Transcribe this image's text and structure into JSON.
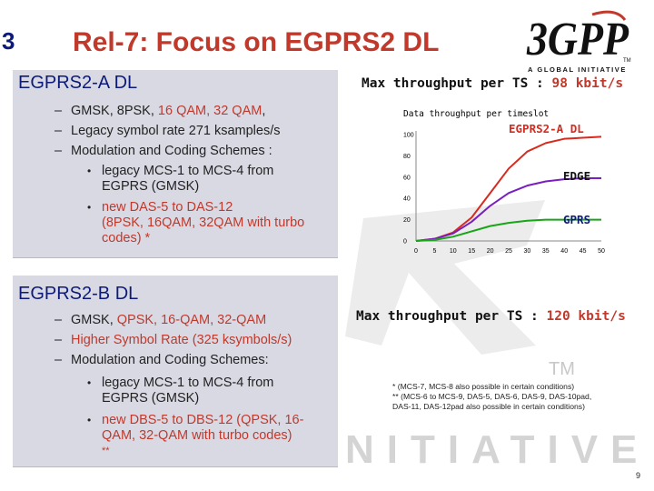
{
  "slide_number": "3",
  "title": "Rel-7: Focus on EGPRS2 DL",
  "logo": {
    "tagline": "A GLOBAL INITIATIVE",
    "mark": "3GPP"
  },
  "watermark": {
    "text": "NITIATIVE",
    "tm": "TM"
  },
  "colors": {
    "accent_red": "#c0392b",
    "heading_navy": "#0c1a7a",
    "panel": "#d9d9e4",
    "egprs2": "#d62b1f",
    "edge": "#7a1fbf",
    "gprs": "#18a518"
  },
  "section_a": {
    "heading": "EGPRS2-A DL",
    "items": {
      "l1": {
        "p1": "GMSK, 8PSK, ",
        "p2": "16 QAM, 32 QAM",
        "p3": ","
      },
      "l2": "Legacy symbol rate 271 ksamples/s",
      "l3": "Modulation and Coding Schemes :",
      "l3a": {
        "line1": "legacy MCS-1 to MCS-4 from",
        "line2": "EGPRS (GMSK)"
      },
      "l3b": {
        "line1": "new DAS-5 to DAS-12",
        "line2": "(8PSK, 16QAM, 32QAM with turbo",
        "line3": "codes) *"
      }
    },
    "max_throughput": {
      "label": "Max throughput per TS : ",
      "value": "98 kbit/s"
    }
  },
  "section_b": {
    "heading": "EGPRS2-B DL",
    "items": {
      "l1": {
        "p1": "GMSK, ",
        "p2": "QPSK, 16-QAM, 32-QAM"
      },
      "l2": "Higher Symbol Rate (325 ksymbols/s)",
      "l3": "Modulation and Coding Schemes:",
      "l3a": {
        "line1": "legacy MCS-1 to MCS-4 from",
        "line2": "EGPRS (GMSK)"
      },
      "l3b": {
        "line1": "new DBS-5 to DBS-12 (QPSK, 16-",
        "line2": "QAM, 32-QAM with turbo codes)",
        "line3": "**"
      }
    },
    "max_throughput": {
      "label": "Max throughput per TS : ",
      "value": "120 kbit/s"
    }
  },
  "chart_data": {
    "type": "line",
    "title": "Data throughput per timeslot",
    "xlabel": "",
    "ylabel": "",
    "x_ticks": [
      "0",
      "5",
      "10",
      "15",
      "20",
      "25",
      "30",
      "35",
      "40",
      "45",
      "50"
    ],
    "y_ticks": [
      "0",
      "20",
      "40",
      "60",
      "80",
      "100"
    ],
    "xlim": [
      0,
      50
    ],
    "ylim": [
      0,
      100
    ],
    "grid": false,
    "series": [
      {
        "name": "EGPRS2-A DL",
        "color": "#d62b1f",
        "x": [
          0,
          5,
          10,
          15,
          20,
          25,
          30,
          35,
          40,
          45,
          50
        ],
        "y": [
          0,
          2,
          8,
          22,
          45,
          68,
          84,
          92,
          96,
          97,
          98
        ]
      },
      {
        "name": "EDGE",
        "color": "#7a1fbf",
        "x": [
          0,
          5,
          10,
          15,
          20,
          25,
          30,
          35,
          40,
          45,
          50
        ],
        "y": [
          0,
          2,
          7,
          18,
          33,
          45,
          52,
          56,
          58,
          59,
          59
        ]
      },
      {
        "name": "GPRS",
        "color": "#18a518",
        "x": [
          0,
          5,
          10,
          15,
          20,
          25,
          30,
          35,
          40,
          45,
          50
        ],
        "y": [
          0,
          1,
          4,
          9,
          14,
          17,
          19,
          20,
          20,
          20,
          20
        ]
      }
    ]
  },
  "footnote": {
    "line1": "* (MCS-7, MCS-8 also possible in certain conditions)",
    "line2": "** (MCS-6 to MCS-9, DAS-5, DAS-6, DAS-9, DAS-10pad,",
    "line3": "DAS-11, DAS-12pad also possible in certain conditions)"
  },
  "page_number": "9"
}
